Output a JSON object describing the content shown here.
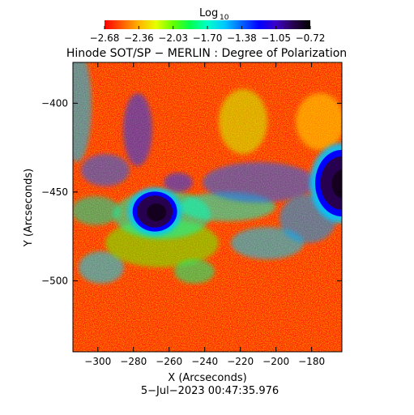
{
  "colorbar": {
    "label_main": "Log",
    "label_sub": "10",
    "ticks": [
      "−2.68",
      "−2.36",
      "−2.03",
      "−1.70",
      "−1.38",
      "−1.05",
      "−0.72"
    ],
    "range": [
      -2.68,
      -0.72
    ],
    "colors": [
      "#ff0000",
      "#ff5a00",
      "#ffb400",
      "#e6ff00",
      "#64ff00",
      "#00ff50",
      "#00ffc8",
      "#00c8ff",
      "#0064ff",
      "#0000ff",
      "#3c00c8",
      "#280050",
      "#000000"
    ]
  },
  "chart_data": {
    "type": "heatmap",
    "title": "Hinode SOT/SP − MERLIN : Degree of Polarization",
    "xlabel": "X (Arcseconds)",
    "ylabel": "Y (Arcseconds)",
    "xlim": [
      -314,
      -163
    ],
    "ylim": [
      -540,
      -377
    ],
    "x_ticks": [
      -300,
      -280,
      -260,
      -240,
      -220,
      -200,
      -180
    ],
    "x_tick_labels": [
      "−300",
      "−280",
      "−260",
      "−240",
      "−220",
      "−200",
      "−180"
    ],
    "y_ticks": [
      -400,
      -450,
      -500
    ],
    "y_tick_labels": [
      "−400",
      "−450",
      "−500"
    ],
    "value_scale": "log10",
    "features": [
      {
        "kind": "sunspot",
        "x": -268,
        "y": -461,
        "rx": 10,
        "ry": 9,
        "value": -0.72
      },
      {
        "kind": "sunspot",
        "x": -163,
        "y": -445,
        "rx": 12,
        "ry": 15,
        "value": -0.72
      }
    ]
  },
  "date": "5−Jul−2023 00:47:35.976"
}
